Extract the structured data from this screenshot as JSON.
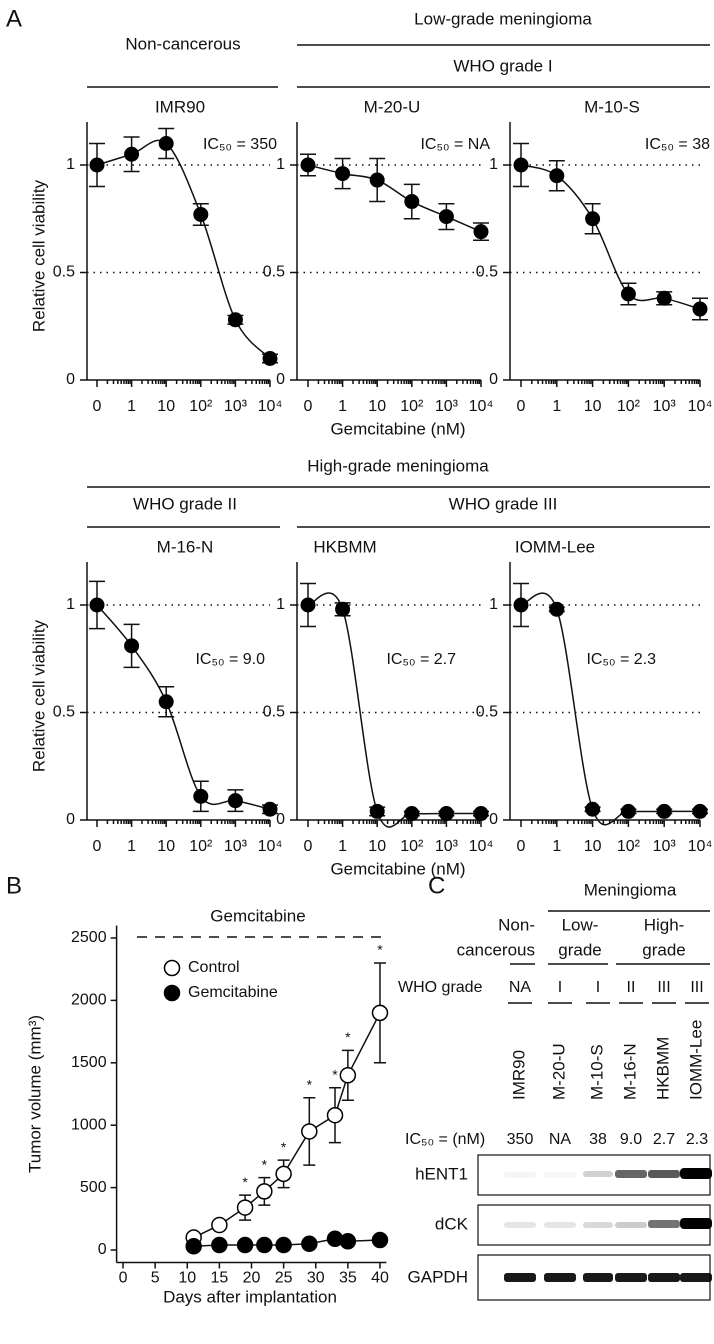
{
  "panel_labels": [
    "A",
    "B",
    "C"
  ],
  "panel_a": {
    "low_grade_header": "Low-grade meningioma",
    "non_cancerous_header": "Non-cancerous",
    "who_grade_1": "WHO grade I",
    "high_grade_header": "High-grade meningioma",
    "who_grade_2": "WHO grade II",
    "who_grade_3": "WHO grade III"
  },
  "chart_data": [
    {
      "type": "dose-response",
      "title": "IMR90",
      "annotation": "IC₅₀ = 350",
      "y_label": "Relative cell viability",
      "categories": [
        "0",
        "1",
        "10",
        "10²",
        "10³",
        "10⁴"
      ],
      "values": [
        1.0,
        1.05,
        1.1,
        0.77,
        0.28,
        0.1
      ],
      "errors": [
        0.1,
        0.08,
        0.07,
        0.05,
        0.02,
        0.02
      ],
      "ylim": [
        0,
        1.2
      ],
      "yticks": [
        0,
        0.5,
        1
      ],
      "reference_lines": [
        0.5,
        1
      ],
      "color": "#000000"
    },
    {
      "type": "dose-response",
      "title": "M-20-U",
      "annotation": "IC₅₀ = NA",
      "x_label": "Gemcitabine (nM)",
      "categories": [
        "0",
        "1",
        "10",
        "10²",
        "10³",
        "10⁴"
      ],
      "values": [
        1.0,
        0.96,
        0.93,
        0.83,
        0.76,
        0.69
      ],
      "errors": [
        0.05,
        0.07,
        0.1,
        0.08,
        0.06,
        0.04
      ],
      "ylim": [
        0,
        1.2
      ],
      "yticks": [
        0,
        0.5,
        1
      ],
      "reference_lines": [
        0.5,
        1
      ],
      "color": "#000000"
    },
    {
      "type": "dose-response",
      "title": "M-10-S",
      "annotation": "IC₅₀ = 38",
      "categories": [
        "0",
        "1",
        "10",
        "10²",
        "10³",
        "10⁴"
      ],
      "values": [
        1.0,
        0.95,
        0.75,
        0.4,
        0.38,
        0.33
      ],
      "errors": [
        0.1,
        0.07,
        0.07,
        0.05,
        0.03,
        0.05
      ],
      "ylim": [
        0,
        1.2
      ],
      "yticks": [
        0,
        0.5,
        1
      ],
      "reference_lines": [
        0.5,
        1
      ],
      "color": "#000000"
    },
    {
      "type": "dose-response",
      "title": "M-16-N",
      "annotation": "IC₅₀ = 9.0",
      "y_label": "Relative cell viability",
      "categories": [
        "0",
        "1",
        "10",
        "10²",
        "10³",
        "10⁴"
      ],
      "values": [
        1.0,
        0.81,
        0.55,
        0.11,
        0.09,
        0.05
      ],
      "errors": [
        0.11,
        0.1,
        0.07,
        0.07,
        0.05,
        0.02
      ],
      "ylim": [
        0,
        1.2
      ],
      "yticks": [
        0,
        0.5,
        1
      ],
      "reference_lines": [
        0.5,
        1
      ],
      "color": "#000000"
    },
    {
      "type": "dose-response",
      "title": "HKBMM",
      "annotation": "IC₅₀ = 2.7",
      "x_label": "Gemcitabine (nM)",
      "categories": [
        "0",
        "1",
        "10",
        "10²",
        "10³",
        "10⁴"
      ],
      "values": [
        1.0,
        0.98,
        0.04,
        0.03,
        0.03,
        0.03
      ],
      "errors": [
        0.1,
        0.03,
        0.02,
        0.01,
        0.01,
        0.01
      ],
      "ylim": [
        0,
        1.2
      ],
      "yticks": [
        0,
        0.5,
        1
      ],
      "reference_lines": [
        0.5,
        1
      ],
      "color": "#000000"
    },
    {
      "type": "dose-response",
      "title": "IOMM-Lee",
      "annotation": "IC₅₀ = 2.3",
      "categories": [
        "0",
        "1",
        "10",
        "10²",
        "10³",
        "10⁴"
      ],
      "values": [
        1.0,
        0.98,
        0.05,
        0.04,
        0.04,
        0.04
      ],
      "errors": [
        0.1,
        0.01,
        0.01,
        0.01,
        0.01,
        0.01
      ],
      "ylim": [
        0,
        1.2
      ],
      "yticks": [
        0,
        0.5,
        1
      ],
      "reference_lines": [
        0.5,
        1
      ],
      "color": "#000000"
    },
    {
      "type": "line",
      "x_label": "Days after implantation",
      "y_label": "Tumor volume (mm³)",
      "treatment_label": "Gemcitabine",
      "xlim": [
        -1,
        41
      ],
      "xticks": [
        0,
        5,
        10,
        15,
        20,
        25,
        30,
        35,
        40
      ],
      "ylim": [
        -100,
        2600
      ],
      "yticks": [
        0,
        500,
        1000,
        1500,
        2000,
        2500
      ],
      "series": [
        {
          "name": "Control",
          "marker": "open",
          "color": "#000000",
          "x": [
            11,
            15,
            19,
            22,
            25,
            29,
            33,
            35,
            40
          ],
          "values": [
            100,
            200,
            340,
            470,
            610,
            950,
            1080,
            1400,
            1900
          ],
          "errors": [
            20,
            30,
            100,
            110,
            110,
            270,
            220,
            200,
            400
          ]
        },
        {
          "name": "Gemcitabine",
          "marker": "filled",
          "color": "#000000",
          "x": [
            11,
            15,
            19,
            22,
            25,
            29,
            33,
            35,
            40
          ],
          "values": [
            30,
            40,
            40,
            40,
            40,
            50,
            90,
            70,
            80
          ],
          "errors": [
            10,
            10,
            10,
            10,
            10,
            10,
            30,
            20,
            20
          ]
        }
      ],
      "significance": {
        "label": "*",
        "x": [
          19,
          22,
          25,
          29,
          33,
          35,
          40
        ]
      }
    }
  ],
  "panel_c": {
    "header": "Meningioma",
    "non_cancerous": [
      "Non-",
      "cancerous"
    ],
    "low_grade": [
      "Low-",
      "grade"
    ],
    "high_grade": [
      "High-",
      "grade"
    ],
    "who_label": "WHO grade",
    "who_grades": [
      "NA",
      "I",
      "I",
      "II",
      "III",
      "III"
    ],
    "cell_lines": [
      "IMR90",
      "M-20-U",
      "M-10-S",
      "M-16-N",
      "HKBMM",
      "IOMM-Lee"
    ],
    "ic50_label": "IC₅₀ = (nM)",
    "ic50_values": [
      "350",
      "NA",
      "38",
      "9.0",
      "2.7",
      "2.3"
    ],
    "blots": [
      "hENT1",
      "dCK",
      "GAPDH"
    ]
  }
}
